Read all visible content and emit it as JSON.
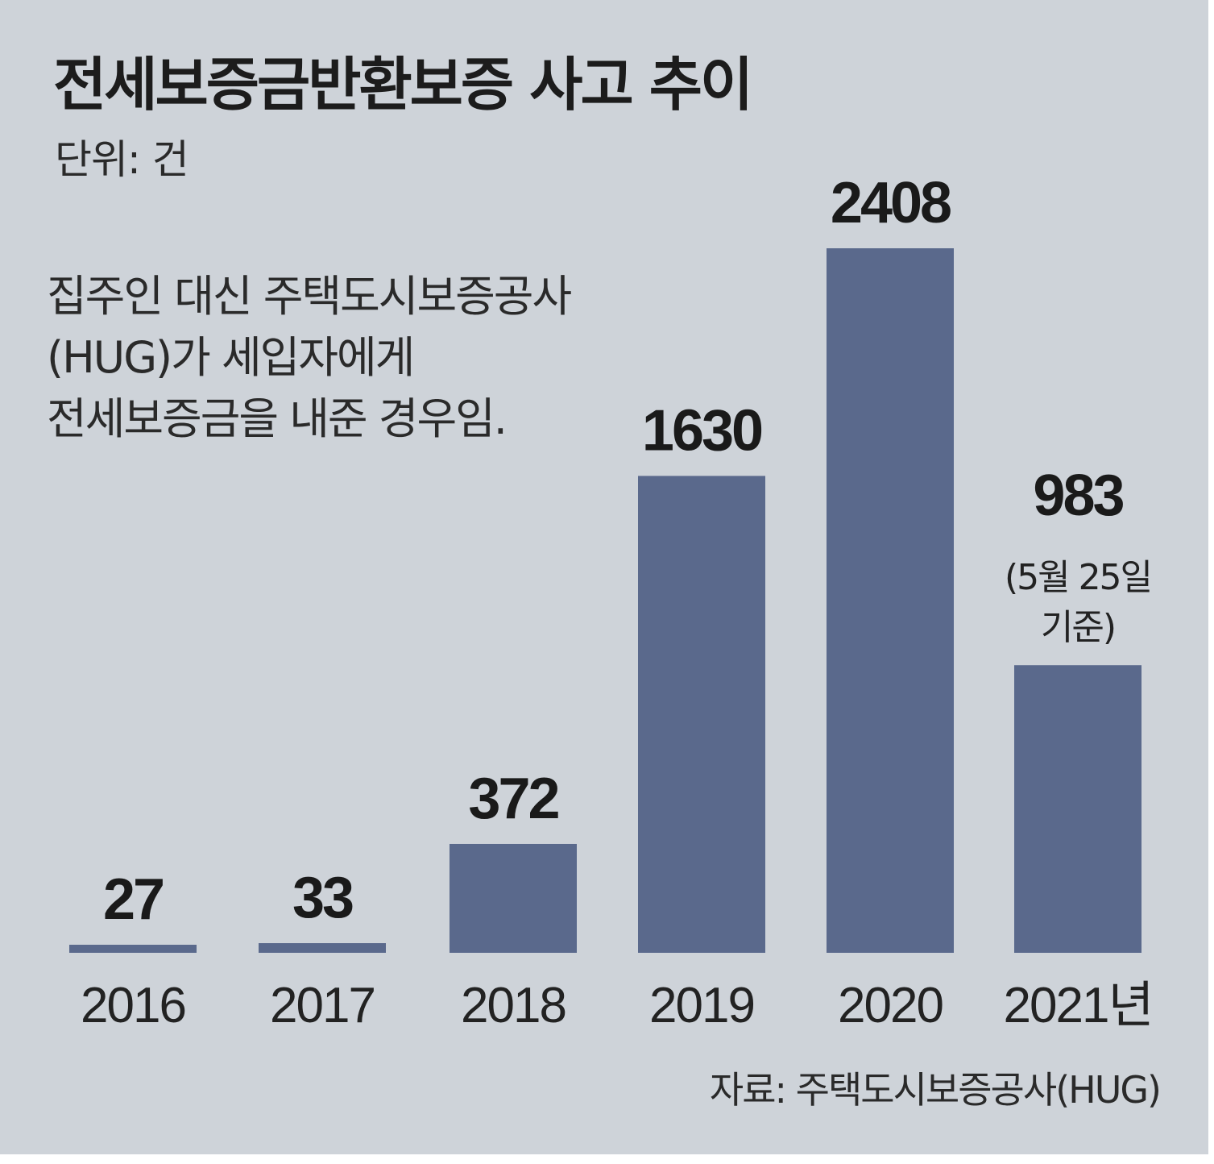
{
  "chart_data": {
    "type": "bar",
    "title": "전세보증금반환보증 사고 추이",
    "unit_label": "단위: 건",
    "note_lines": [
      "집주인 대신 주택도시보증공사",
      "(HUG)가 세입자에게",
      "전세보증금을 내준 경우임."
    ],
    "categories": [
      "2016",
      "2017",
      "2018",
      "2019",
      "2020",
      "2021년"
    ],
    "values": [
      27,
      33,
      372,
      1630,
      2408,
      983
    ],
    "value_labels": [
      "27",
      "33",
      "372",
      "1630",
      "2408",
      "983"
    ],
    "annotation": {
      "category_index": 5,
      "lines": [
        "(5월 25일",
        "기준)"
      ]
    },
    "source": "자료: 주택도시보증공사(HUG)",
    "bar_color": "#5a698c",
    "background_color": "#ced3d9",
    "ylim": [
      0,
      2408
    ],
    "grid": false,
    "legend": "none",
    "xlabel": "",
    "ylabel": ""
  }
}
